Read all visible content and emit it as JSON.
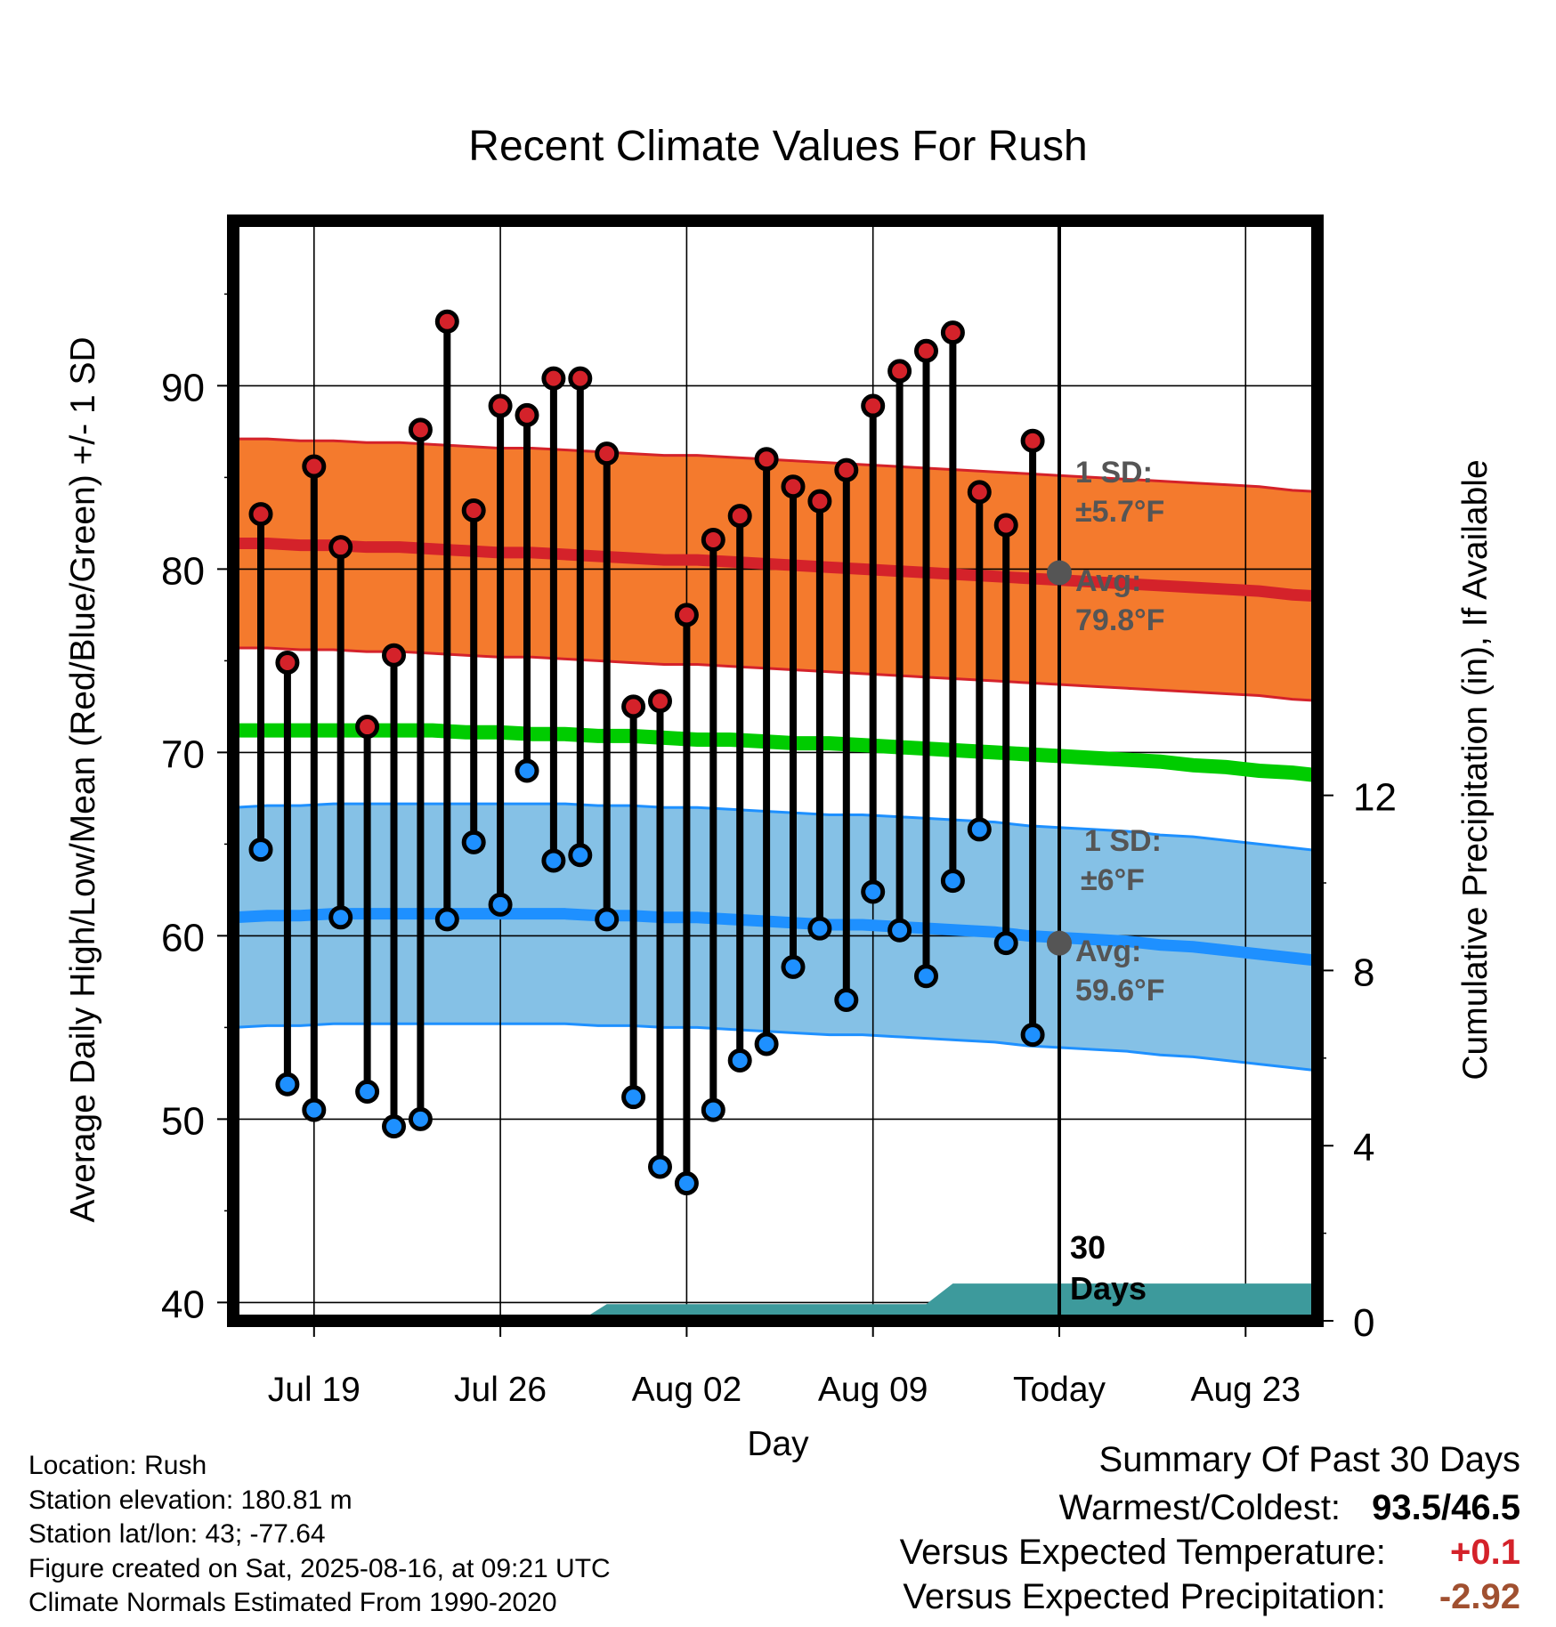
{
  "chart_data": {
    "type": "line",
    "title": "Recent Climate Values For Rush",
    "xlabel": "Day",
    "ylabel": "Average Daily High/Low/Mean (Red/Blue/Green) +/- 1 SD",
    "y2label": "Cumulative Precipitation (in), If Available",
    "ylim": [
      39,
      99
    ],
    "y_ticks": [
      40,
      50,
      60,
      70,
      80,
      90
    ],
    "y2lim": [
      0,
      30
    ],
    "y2_ticks": [
      0,
      4,
      8,
      12
    ],
    "x_day_range": [
      -31,
      10
    ],
    "x_ticks": [
      {
        "label": "Jul 19",
        "day": -28
      },
      {
        "label": "Jul 26",
        "day": -21
      },
      {
        "label": "Aug 02",
        "day": -14
      },
      {
        "label": "Aug 09",
        "day": -7
      },
      {
        "label": "Today",
        "day": 0
      },
      {
        "label": "Aug 23",
        "day": 7
      }
    ],
    "today_day": 0,
    "grid": true,
    "daily_high": [
      83.0,
      74.9,
      85.6,
      81.2,
      71.4,
      75.3,
      87.6,
      93.5,
      83.2,
      88.9,
      88.4,
      90.4,
      90.4,
      86.3,
      72.5,
      72.8,
      77.5,
      81.6,
      82.9,
      86.0,
      84.5,
      83.7,
      85.4,
      88.9,
      90.8,
      91.9,
      92.9,
      84.2,
      82.4,
      87.0
    ],
    "daily_low": [
      64.7,
      51.9,
      50.5,
      61.0,
      51.5,
      49.6,
      50.0,
      60.9,
      65.1,
      61.7,
      69.0,
      64.1,
      64.4,
      60.9,
      51.2,
      47.4,
      46.5,
      50.5,
      53.2,
      54.1,
      58.3,
      60.4,
      56.5,
      62.4,
      60.3,
      57.8,
      63.0,
      65.8,
      59.6,
      54.6
    ],
    "normal_high": [
      81.4,
      81.4,
      81.3,
      81.3,
      81.2,
      81.2,
      81.1,
      81.0,
      80.9,
      80.9,
      80.8,
      80.7,
      80.6,
      80.5,
      80.5,
      80.4,
      80.3,
      80.2,
      80.1,
      80.0,
      79.9,
      79.8,
      79.7,
      79.6,
      79.5,
      79.4,
      79.3,
      79.2,
      79.1,
      79.0,
      78.9,
      78.8,
      78.6,
      78.5
    ],
    "normal_mean": [
      71.2,
      71.2,
      71.2,
      71.2,
      71.2,
      71.2,
      71.2,
      71.1,
      71.1,
      71.0,
      71.0,
      70.9,
      70.9,
      70.8,
      70.7,
      70.7,
      70.6,
      70.5,
      70.5,
      70.4,
      70.3,
      70.2,
      70.1,
      70.0,
      69.9,
      69.8,
      69.7,
      69.6,
      69.5,
      69.3,
      69.2,
      69.0,
      68.9,
      68.7
    ],
    "normal_low": [
      61.0,
      61.1,
      61.1,
      61.2,
      61.2,
      61.2,
      61.2,
      61.2,
      61.2,
      61.2,
      61.2,
      61.1,
      61.1,
      61.0,
      61.0,
      60.9,
      60.8,
      60.7,
      60.6,
      60.6,
      60.5,
      60.4,
      60.3,
      60.2,
      60.0,
      59.9,
      59.8,
      59.7,
      59.5,
      59.4,
      59.2,
      59.0,
      58.8,
      58.6
    ],
    "high_sd": 5.7,
    "low_sd": 6.0,
    "cumulative_precip": [
      {
        "day": -18,
        "inches": 0.0
      },
      {
        "day": -17,
        "inches": 0.38
      },
      {
        "day": -5,
        "inches": 0.38
      },
      {
        "day": -4,
        "inches": 0.85
      },
      {
        "day": 10,
        "inches": 0.85
      }
    ],
    "annotations": {
      "high_sd_label": "1 SD:",
      "high_sd_value": "±5.7°F",
      "high_avg_label": "Avg:",
      "high_avg_value": "79.8°F",
      "low_sd_label": "1 SD:",
      "low_sd_value": "±6°F",
      "low_avg_label": "Avg:",
      "low_avg_value": "59.6°F",
      "window_label_1": "30",
      "window_label_2": "Days"
    },
    "today_high_avg": 79.8,
    "today_low_avg": 59.6
  },
  "colors": {
    "high_band": "#f47a2d",
    "high_line": "#d4222a",
    "high_dot": "#d4222a",
    "low_band": "#85c1e6",
    "low_line": "#1e90ff",
    "low_dot": "#1e90ff",
    "mean_line": "#00cc00",
    "precip_fill": "#3d9a9c",
    "annotation_text": "#555555",
    "anomaly_positive": "#d4222a",
    "anomaly_negative": "#a05030"
  },
  "metadata": {
    "location": "Location: Rush",
    "elevation": "Station elevation: 180.81 m",
    "latlon": "Station lat/lon: 43; -77.64",
    "created": "Figure created on Sat, 2025-08-16, at 09:21 UTC",
    "normals": "Climate Normals Estimated From 1990-2020"
  },
  "summary": {
    "title": "Summary Of Past 30 Days",
    "warm_cold_label": "Warmest/Coldest:",
    "warm_cold_value": "93.5/46.5",
    "temp_label": "Versus Expected Temperature:",
    "temp_value": "+0.1",
    "precip_label": "Versus Expected Precipitation:",
    "precip_value": "-2.92"
  }
}
